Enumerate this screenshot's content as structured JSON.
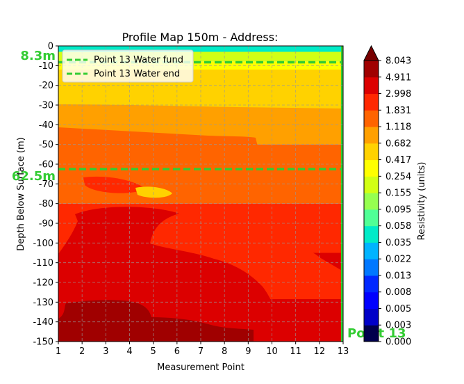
{
  "chart_data": {
    "type": "heatmap",
    "title": "Profile Map 150m - Address:",
    "xlabel": "Measurement Point",
    "ylabel": "Depth Below Surface (m)",
    "colorbar_label": "Resistivity (units)",
    "xlim": [
      1,
      13
    ],
    "ylim": [
      -150,
      0
    ],
    "x_ticks": [
      1,
      2,
      3,
      4,
      5,
      6,
      7,
      8,
      9,
      10,
      11,
      12,
      13
    ],
    "y_ticks": [
      0,
      -10,
      -20,
      -30,
      -40,
      -50,
      -60,
      -70,
      -80,
      -90,
      -100,
      -110,
      -120,
      -130,
      -140,
      -150
    ],
    "grid": true,
    "legend_position": "top-left",
    "colorbar": {
      "levels": [
        "0.000",
        "0.003",
        "0.005",
        "0.008",
        "0.013",
        "0.022",
        "0.035",
        "0.058",
        "0.095",
        "0.155",
        "0.254",
        "0.417",
        "0.682",
        "1.118",
        "1.831",
        "2.998",
        "4.911",
        "8.043"
      ],
      "colors": [
        "#00004c",
        "#0000c8",
        "#0000ff",
        "#0028ff",
        "#0078ff",
        "#00b4ff",
        "#00ebc8",
        "#50ff96",
        "#96ff50",
        "#d2ff14",
        "#ffff00",
        "#ffd200",
        "#ffa000",
        "#ff6400",
        "#ff2800",
        "#dc0000",
        "#a00000"
      ],
      "over_color": "#780000"
    },
    "depth_bands": [
      {
        "from": 0,
        "to": -3,
        "label": "0.035"
      },
      {
        "from": -3,
        "to": -8,
        "label": "0.155"
      },
      {
        "from": -8,
        "to": -12,
        "label": "0.254"
      },
      {
        "from": -12,
        "to": -32,
        "label": "0.417"
      },
      {
        "from": -32,
        "to": -50,
        "label": "0.682"
      },
      {
        "from": -50,
        "to": -80,
        "label": "1.118"
      },
      {
        "from": -80,
        "to": -105,
        "label": "1.831"
      },
      {
        "from": -105,
        "to": -138,
        "label": "2.998"
      },
      {
        "from": -138,
        "to": -150,
        "label": "4.911"
      }
    ],
    "lines": [
      {
        "name": "Point 13 Water fund",
        "y": -8.3,
        "style": "dashed",
        "color": "#33cc33"
      },
      {
        "name": "Point 13 Water end",
        "y": -62.5,
        "style": "dashed",
        "color": "#33cc33"
      }
    ],
    "annotations": [
      {
        "text": "8.3m",
        "y": -8.3,
        "side": "left"
      },
      {
        "text": "62.5m",
        "y": -62.5,
        "side": "left"
      },
      {
        "text": "Point 13",
        "x": 13,
        "y": -145,
        "side": "right"
      }
    ]
  }
}
